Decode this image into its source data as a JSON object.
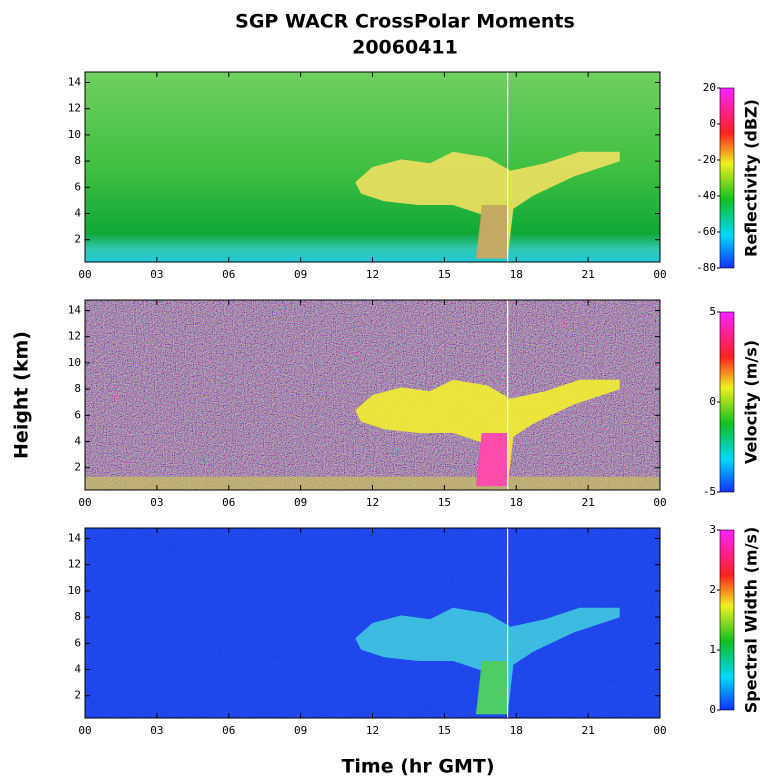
{
  "figure": {
    "title": "SGP WACR CrossPolar Moments",
    "subtitle": "20060411",
    "x_label": "Time (hr GMT)",
    "y_label": "Height (km)"
  },
  "chart_data": [
    {
      "type": "heatmap",
      "xlim": [
        0,
        24
      ],
      "ylim": [
        0.3,
        14.8
      ],
      "xticks": [
        {
          "value": 0,
          "label": "00"
        },
        {
          "value": 3,
          "label": "03"
        },
        {
          "value": 6,
          "label": "06"
        },
        {
          "value": 9,
          "label": "09"
        },
        12,
        15,
        18,
        21,
        {
          "value": 24,
          "label": "00"
        }
      ],
      "yticks": [
        2,
        4,
        6,
        8,
        10,
        12,
        14
      ],
      "colorbar": {
        "label": "Reflectivity (dBZ)",
        "lim": [
          -80,
          20
        ],
        "ticks": [
          -80,
          -60,
          -40,
          -20,
          0,
          20
        ]
      }
    },
    {
      "type": "heatmap",
      "xlim": [
        0,
        24
      ],
      "ylim": [
        0.3,
        14.8
      ],
      "xticks": [
        {
          "value": 0,
          "label": "00"
        },
        {
          "value": 3,
          "label": "03"
        },
        {
          "value": 6,
          "label": "06"
        },
        {
          "value": 9,
          "label": "09"
        },
        12,
        15,
        18,
        21,
        {
          "value": 24,
          "label": "00"
        }
      ],
      "yticks": [
        2,
        4,
        6,
        8,
        10,
        12,
        14
      ],
      "colorbar": {
        "label": "Velocity (m/s)",
        "lim": [
          -5,
          5
        ],
        "ticks": [
          -5,
          0,
          5
        ]
      }
    },
    {
      "type": "heatmap",
      "xlim": [
        0,
        24
      ],
      "ylim": [
        0.3,
        14.8
      ],
      "xticks": [
        {
          "value": 0,
          "label": "00"
        },
        {
          "value": 3,
          "label": "03"
        },
        {
          "value": 6,
          "label": "06"
        },
        {
          "value": 9,
          "label": "09"
        },
        12,
        15,
        18,
        21,
        {
          "value": 24,
          "label": "00"
        }
      ],
      "yticks": [
        2,
        4,
        6,
        8,
        10,
        12,
        14
      ],
      "colorbar": {
        "label": "Spectral Width (m/s)",
        "lim": [
          0,
          3
        ],
        "ticks": [
          0,
          1,
          2,
          3
        ]
      }
    }
  ]
}
